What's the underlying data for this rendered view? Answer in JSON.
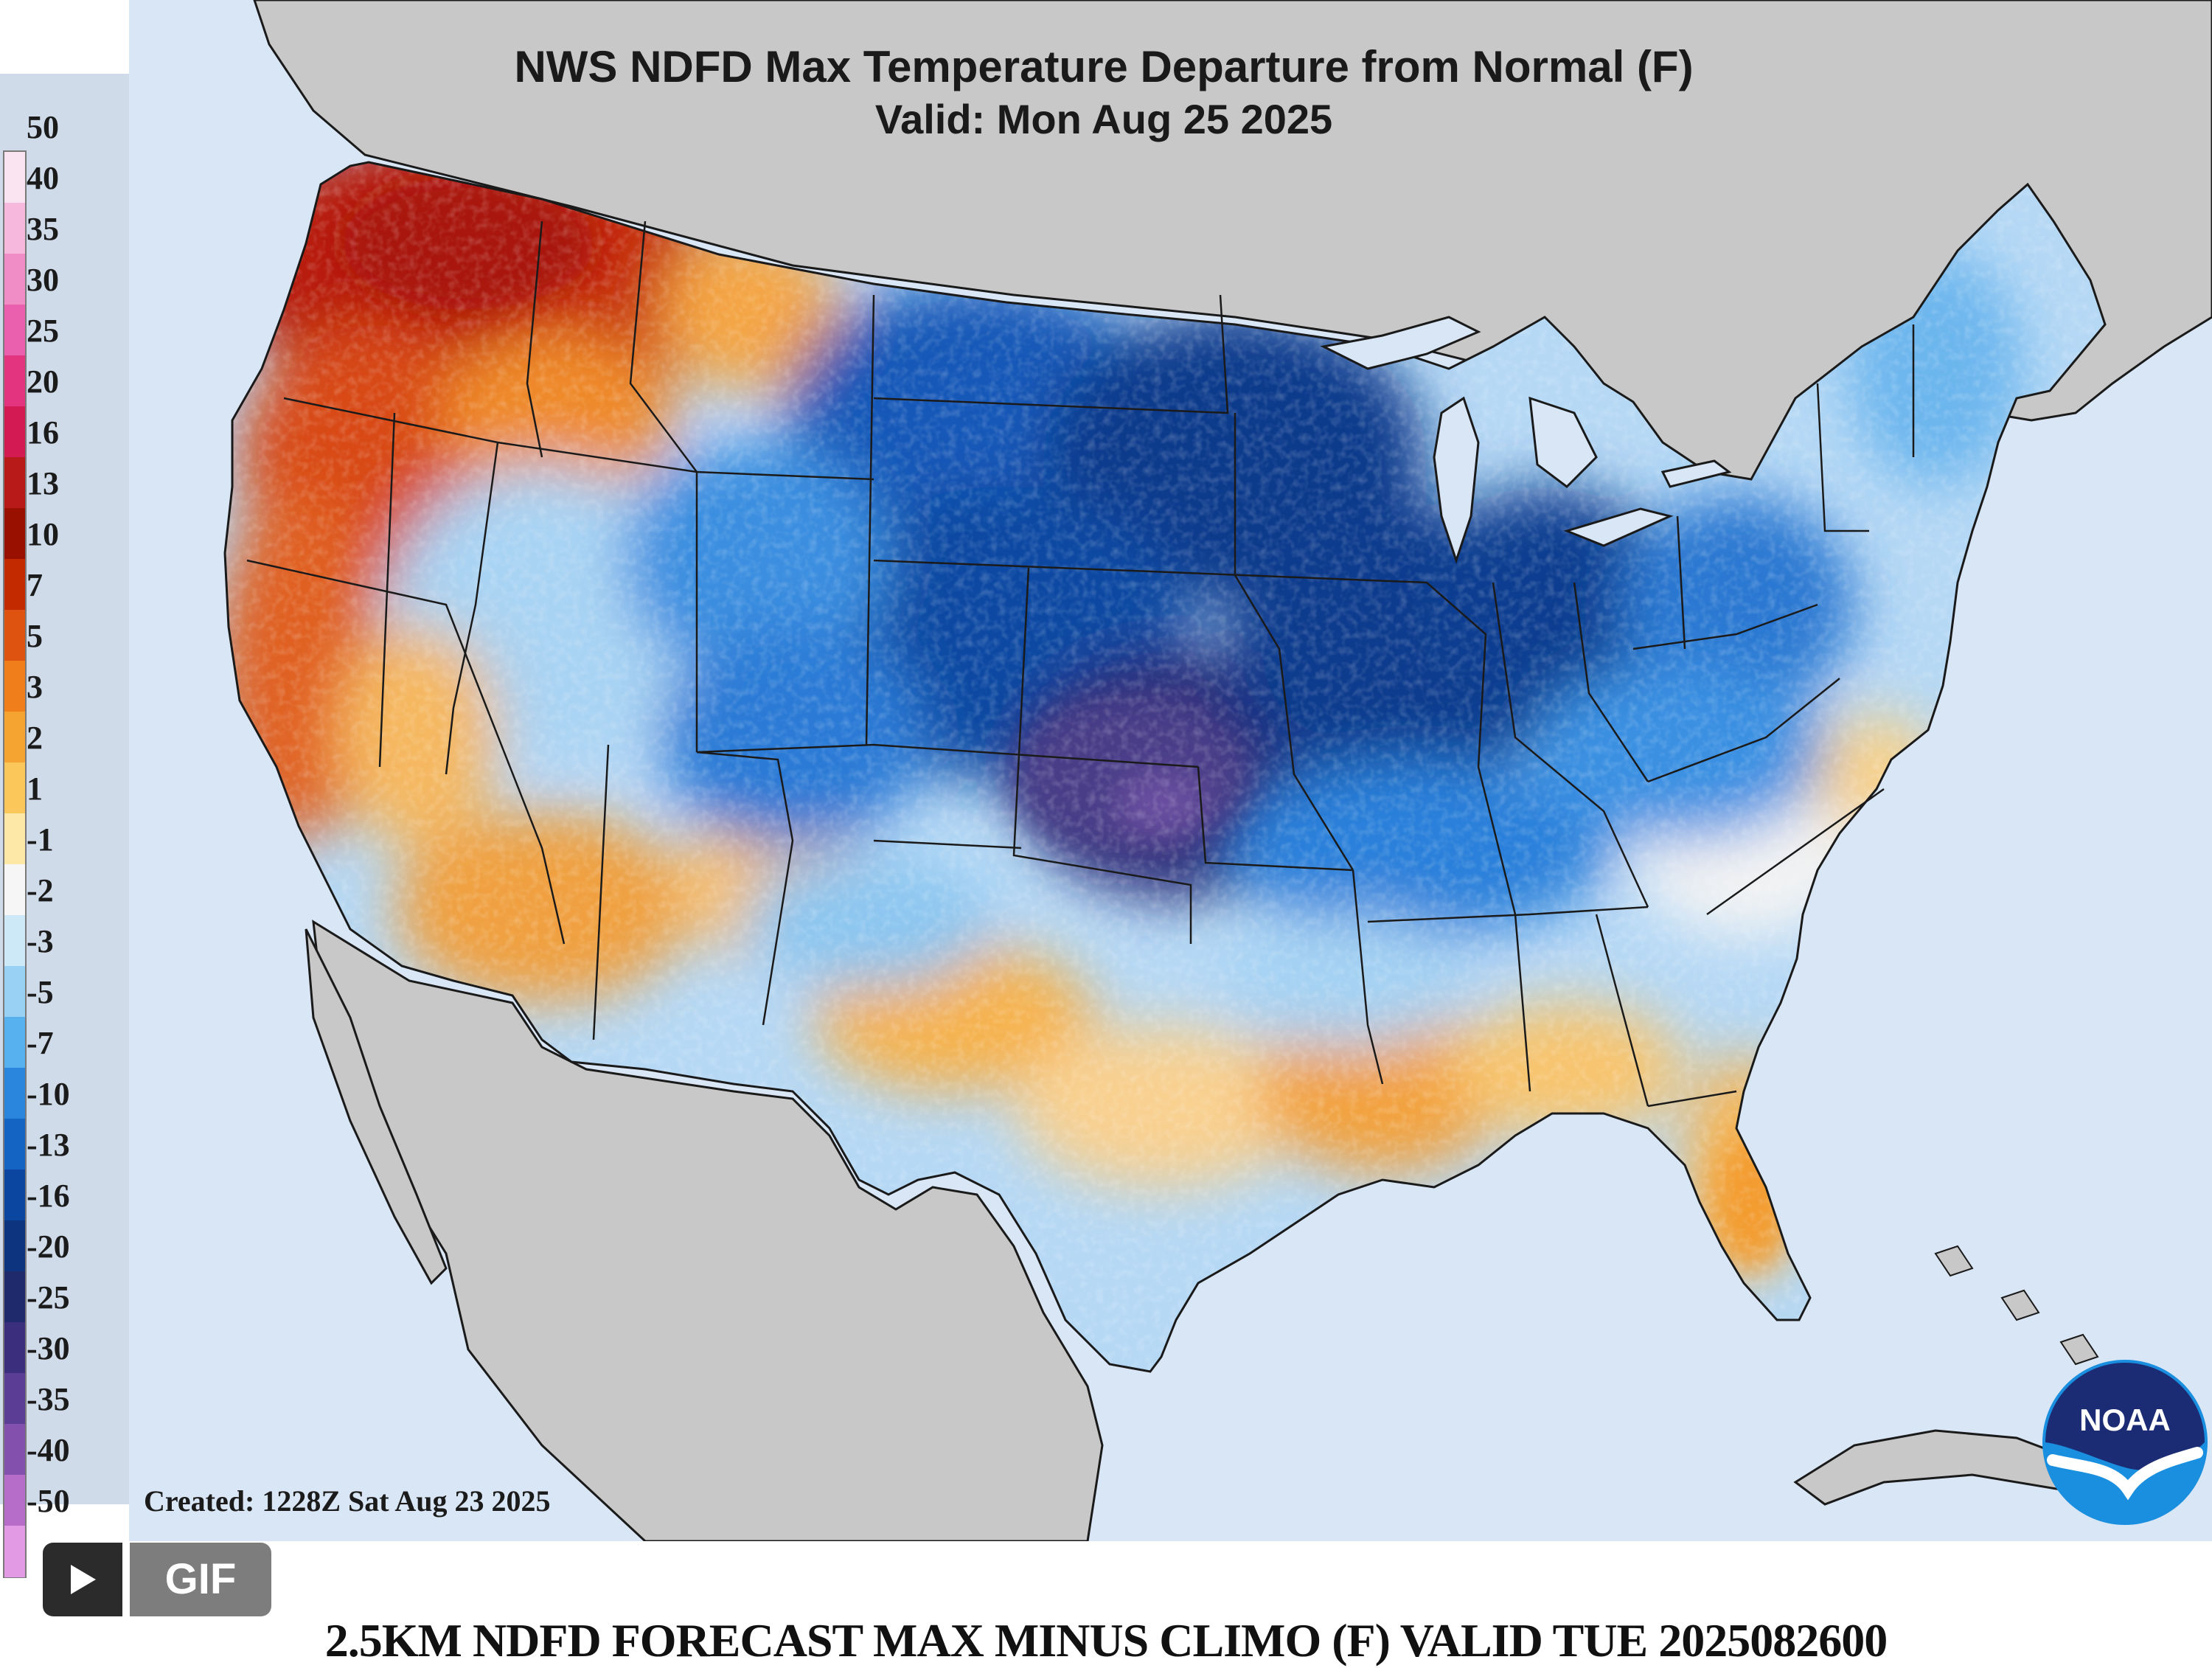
{
  "map": {
    "title": "NWS NDFD Max Temperature Departure from Normal (F)",
    "valid": "Valid: Mon Aug 25 2025",
    "created": "Created: 1228Z Sat Aug 23 2025"
  },
  "legend": {
    "labels": [
      "50",
      "40",
      "35",
      "30",
      "25",
      "20",
      "16",
      "13",
      "10",
      "7",
      "5",
      "3",
      "2",
      "1",
      "-1",
      "-2",
      "-3",
      "-5",
      "-7",
      "-10",
      "-13",
      "-16",
      "-20",
      "-25",
      "-30",
      "-35",
      "-40",
      "-50"
    ],
    "colors": [
      "#fbe4f1",
      "#f6b8dc",
      "#f08dc7",
      "#ea5fae",
      "#e2347f",
      "#d41a53",
      "#b81a1a",
      "#9a1000",
      "#c42a00",
      "#df5310",
      "#ef7e1b",
      "#f6a431",
      "#fbc65a",
      "#fde8a8",
      "#f6f6f6",
      "#cde8f7",
      "#98d1f3",
      "#56b1ee",
      "#2a86dc",
      "#1464c4",
      "#0b46a0",
      "#0c347f",
      "#1e2a6c",
      "#3b2e7d",
      "#5c3d96",
      "#8350ad",
      "#b66cc9",
      "#e39ae4"
    ]
  },
  "colors": {
    "ocean": "#d9e6f5",
    "land_outside": "#c8c8c8",
    "warm_deep": "#b81a0c",
    "warm": "#e25a1c",
    "orange": "#f39b2e",
    "yellow": "#fbd37a",
    "pale": "#eef2f7",
    "light_blue": "#9fcdf1",
    "blue": "#3c8fe0",
    "dark_blue": "#0f4fae",
    "navy": "#0c3583",
    "purple": "#4a3c88"
  },
  "controls": {
    "play_icon": "play-icon",
    "gif_label": "GIF"
  },
  "caption": "2.5KM NDFD FORECAST MAX MINUS CLIMO (F) VALID TUE 2025082600",
  "logo": {
    "text": "NOAA"
  }
}
